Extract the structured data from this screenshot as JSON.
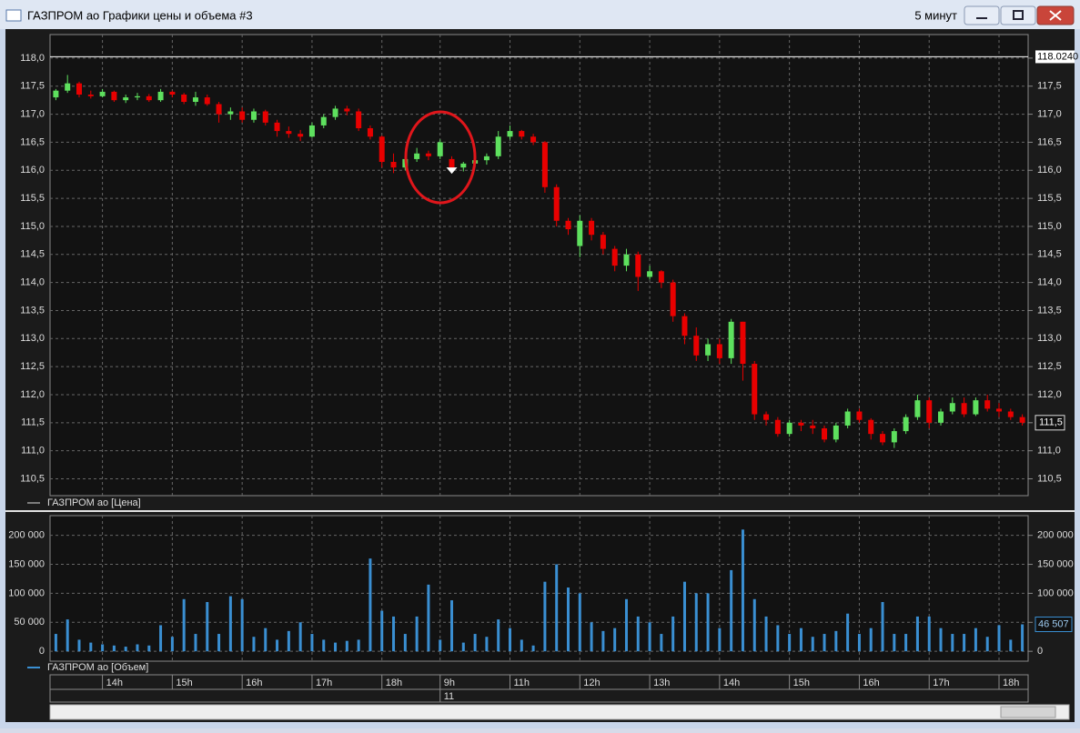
{
  "window": {
    "title": "ГАЗПРОМ ао Графики цены и объема #3",
    "interval": "5 минут"
  },
  "chart_data": [
    {
      "type": "candlestick",
      "legend": "ГАЗПРОМ ао [Цена]",
      "color_up": "#5ee05e",
      "color_down": "#e80000",
      "open": [
        117.3,
        117.42,
        117.55,
        117.35,
        117.32,
        117.4,
        117.25,
        117.3,
        117.32,
        117.25,
        117.4,
        117.35,
        117.22,
        117.3,
        117.18,
        117.0,
        117.05,
        116.9,
        117.05,
        116.85,
        116.7,
        116.65,
        116.6,
        116.8,
        116.95,
        117.1,
        117.05,
        116.75,
        116.6,
        116.15,
        116.05,
        116.2,
        116.3,
        116.25,
        116.2,
        116.05,
        116.12,
        116.18,
        116.25,
        116.6,
        116.7,
        116.6,
        116.5,
        115.7,
        115.1,
        114.65,
        115.1,
        114.85,
        114.6,
        114.3,
        114.5,
        114.1,
        114.2,
        114.0,
        113.4,
        113.05,
        112.7,
        112.9,
        112.65,
        113.3,
        112.55,
        111.65,
        111.55,
        111.3,
        111.5,
        111.45,
        111.4,
        111.2,
        111.45,
        111.7,
        111.55,
        111.3,
        111.15,
        111.35,
        111.6,
        111.9,
        111.5,
        111.7,
        111.85,
        111.65,
        111.9,
        111.75,
        111.7,
        111.6
      ],
      "high": [
        117.45,
        117.7,
        117.58,
        117.42,
        117.45,
        117.42,
        117.35,
        117.38,
        117.36,
        117.45,
        117.42,
        117.38,
        117.4,
        117.35,
        117.22,
        117.12,
        117.12,
        117.1,
        117.08,
        116.9,
        116.78,
        116.72,
        116.85,
        117.0,
        117.15,
        117.15,
        117.1,
        116.8,
        116.62,
        116.3,
        116.25,
        116.4,
        116.35,
        116.55,
        116.25,
        116.15,
        116.22,
        116.3,
        116.7,
        116.8,
        116.72,
        116.65,
        116.52,
        115.75,
        115.15,
        115.2,
        115.15,
        114.9,
        114.65,
        114.6,
        114.55,
        114.3,
        114.22,
        114.05,
        113.45,
        113.2,
        113.0,
        113.0,
        113.35,
        113.3,
        112.6,
        111.7,
        111.6,
        111.55,
        111.55,
        111.55,
        111.45,
        111.5,
        111.75,
        111.75,
        111.58,
        111.35,
        111.4,
        111.65,
        112.0,
        111.95,
        111.75,
        111.95,
        111.95,
        111.95,
        112.0,
        111.85,
        111.75,
        111.65
      ],
      "low": [
        117.25,
        117.38,
        117.3,
        117.28,
        117.3,
        117.22,
        117.2,
        117.25,
        117.22,
        117.22,
        117.3,
        117.18,
        117.15,
        117.15,
        116.85,
        116.9,
        116.85,
        116.85,
        116.8,
        116.6,
        116.58,
        116.52,
        116.58,
        116.75,
        116.9,
        116.98,
        116.7,
        116.55,
        116.05,
        115.95,
        116.0,
        116.15,
        116.18,
        116.2,
        116.0,
        115.98,
        116.05,
        116.1,
        116.2,
        116.55,
        116.55,
        116.45,
        115.6,
        115.0,
        114.85,
        114.45,
        114.75,
        114.5,
        114.2,
        114.2,
        113.85,
        114.05,
        113.9,
        113.3,
        112.9,
        112.6,
        112.6,
        112.55,
        112.55,
        112.25,
        111.55,
        111.45,
        111.25,
        111.25,
        111.35,
        111.3,
        111.15,
        111.15,
        111.4,
        111.5,
        111.2,
        111.1,
        111.05,
        111.3,
        111.55,
        111.4,
        111.45,
        111.65,
        111.6,
        111.62,
        111.7,
        111.6,
        111.55,
        111.45
      ],
      "close": [
        117.42,
        117.55,
        117.35,
        117.32,
        117.4,
        117.25,
        117.3,
        117.32,
        117.25,
        117.4,
        117.35,
        117.22,
        117.3,
        117.18,
        117.0,
        117.05,
        116.9,
        117.05,
        116.85,
        116.7,
        116.65,
        116.6,
        116.8,
        116.95,
        117.1,
        117.05,
        116.75,
        116.6,
        116.15,
        116.05,
        116.2,
        116.3,
        116.25,
        116.5,
        116.05,
        116.12,
        116.18,
        116.25,
        116.6,
        116.7,
        116.6,
        116.5,
        115.7,
        115.1,
        114.95,
        115.1,
        114.85,
        114.6,
        114.3,
        114.5,
        114.1,
        114.2,
        114.0,
        113.4,
        113.05,
        112.7,
        112.9,
        112.65,
        113.3,
        112.55,
        111.65,
        111.55,
        111.3,
        111.5,
        111.45,
        111.4,
        111.2,
        111.45,
        111.7,
        111.55,
        111.3,
        111.15,
        111.35,
        111.6,
        111.9,
        111.5,
        111.7,
        111.85,
        111.65,
        111.9,
        111.75,
        111.7,
        111.6,
        111.5
      ],
      "xlim": [
        -0.5,
        83.5
      ],
      "ylim": [
        110.2,
        118.42
      ],
      "yticks": [
        {
          "value": 110.5,
          "label": "110,5"
        },
        {
          "value": 111,
          "label": "111,0"
        },
        {
          "value": 111.5,
          "label": "111,5"
        },
        {
          "value": 112,
          "label": "112,0"
        },
        {
          "value": 112.5,
          "label": "112,5"
        },
        {
          "value": 113,
          "label": "113,0"
        },
        {
          "value": 113.5,
          "label": "113,5"
        },
        {
          "value": 114,
          "label": "114,0"
        },
        {
          "value": 114.5,
          "label": "114,5"
        },
        {
          "value": 115,
          "label": "115,0"
        },
        {
          "value": 115.5,
          "label": "115,5"
        },
        {
          "value": 116,
          "label": "116,0"
        },
        {
          "value": 116.5,
          "label": "116,5"
        },
        {
          "value": 117,
          "label": "117,0"
        },
        {
          "value": 117.5,
          "label": "117,5"
        },
        {
          "value": 118,
          "label": "118,0"
        }
      ],
      "xticks": [
        {
          "value": 4,
          "label": "14h"
        },
        {
          "value": 10,
          "label": "15h"
        },
        {
          "value": 16,
          "label": "16h"
        },
        {
          "value": 22,
          "label": "17h"
        },
        {
          "value": 28,
          "label": "18h"
        },
        {
          "value": 33,
          "label": "9h"
        },
        {
          "value": 39,
          "label": "11h"
        },
        {
          "value": 45,
          "label": "12h"
        },
        {
          "value": 51,
          "label": "13h"
        },
        {
          "value": 57,
          "label": "14h"
        },
        {
          "value": 63,
          "label": "15h"
        },
        {
          "value": 69,
          "label": "16h"
        },
        {
          "value": 75,
          "label": "17h"
        },
        {
          "value": 81,
          "label": "18h"
        }
      ],
      "xdate": {
        "value": 33,
        "label": "11"
      },
      "high_line": {
        "value": 118.024,
        "label": "118.0240"
      },
      "last_price": {
        "value": 111.5,
        "label": "111,5"
      },
      "marker_index": 34,
      "grid": true
    },
    {
      "type": "bar",
      "legend": "ГАЗПРОМ ао [Объем]",
      "color": "#3a8fd2",
      "xlim": [
        -0.5,
        83.5
      ],
      "ylim": [
        -17000,
        234000
      ],
      "values": [
        30000,
        55000,
        20000,
        15000,
        12000,
        10000,
        8000,
        12000,
        10000,
        45000,
        25000,
        90000,
        30000,
        85000,
        30000,
        95000,
        90000,
        25000,
        40000,
        20000,
        35000,
        50000,
        30000,
        20000,
        15000,
        18000,
        20000,
        160000,
        70000,
        60000,
        30000,
        60000,
        115000,
        20000,
        88000,
        15000,
        30000,
        25000,
        55000,
        40000,
        20000,
        10000,
        120000,
        150000,
        110000,
        100000,
        50000,
        35000,
        40000,
        90000,
        60000,
        50000,
        30000,
        60000,
        120000,
        100000,
        100000,
        40000,
        140000,
        210000,
        90000,
        60000,
        45000,
        30000,
        40000,
        25000,
        30000,
        35000,
        65000,
        30000,
        40000,
        85000,
        30000,
        30000,
        60000,
        60000,
        40000,
        30000,
        30000,
        40000,
        25000,
        45000,
        20000,
        46507
      ],
      "yticks": [
        0,
        {
          "value": 50000,
          "label": "50 000"
        },
        {
          "value": 100000,
          "label": "100 000"
        },
        {
          "value": 150000,
          "label": "150 000"
        },
        {
          "value": 200000,
          "label": "200 000"
        }
      ],
      "last_value": {
        "value": 46507,
        "label": "46 507"
      },
      "grid": true
    }
  ]
}
